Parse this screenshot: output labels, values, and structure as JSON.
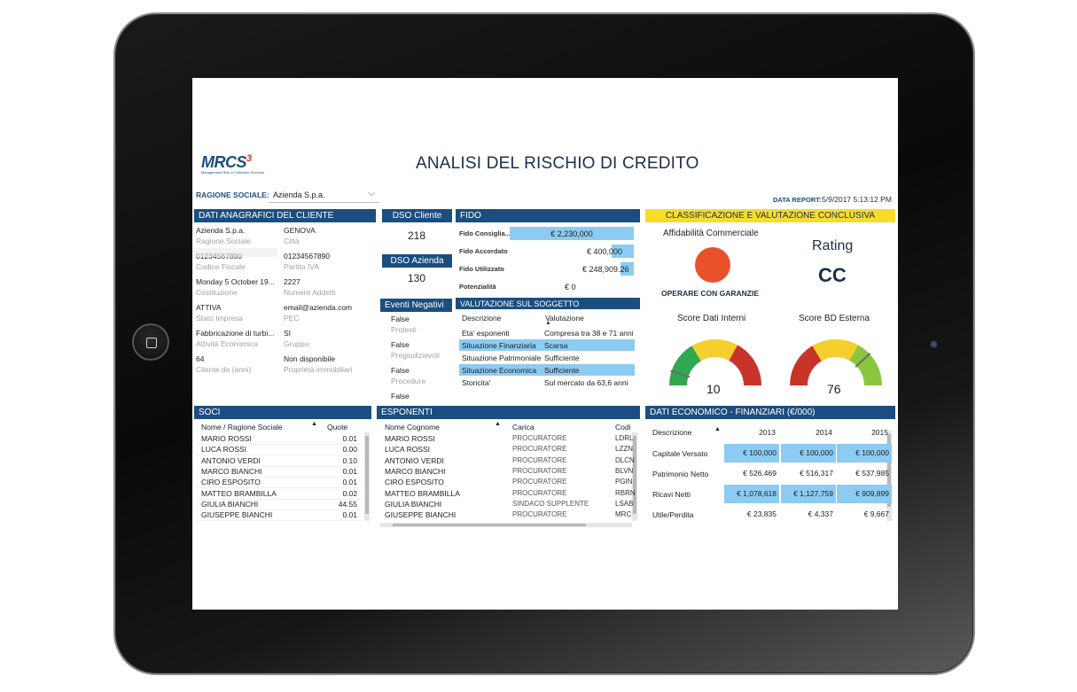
{
  "header": {
    "logo": "MRCS",
    "logo_sup": "3",
    "logo_sub": "Management Risk & Collection Services",
    "title": "ANALISI DEL RISCHIO DI CREDITO",
    "ragione_label": "RAGIONE SOCIALE:",
    "ragione_value": "Azienda S.p.a.",
    "data_report_label": "DATA REPORT:",
    "data_report_value": "5/9/2017 5:13:12 PM"
  },
  "anagrafica": {
    "title": "DATI ANAGRAFICI DEL CLIENTE",
    "left": [
      {
        "value": "Azienda S.p.a.",
        "label": "Ragione Sociale"
      },
      {
        "value": "01234567890",
        "label": "Codice Fiscale"
      },
      {
        "value": "Monday 5 October 19...",
        "label": "Costituzione"
      },
      {
        "value": "ATTIVA",
        "label": "Stato Impresa"
      },
      {
        "value": "Fabbricazione di turbi...",
        "label": "Attività Economica"
      },
      {
        "value": "64",
        "label": "Cliente da (anni)"
      }
    ],
    "right": [
      {
        "value": "GENOVA",
        "label": "Città"
      },
      {
        "value": "01234567890",
        "label": "Partita IVA"
      },
      {
        "value": "2227",
        "label": "Numero Addetti"
      },
      {
        "value": "email@azienda.com",
        "label": "PEC"
      },
      {
        "value": "SI",
        "label": "Gruppo"
      },
      {
        "value": "Non disponibile",
        "label": "Proprietà immobiliari"
      }
    ]
  },
  "dso": {
    "cliente_title": "DSO Cliente",
    "cliente_value": "218",
    "azienda_title": "DSO Azienda",
    "azienda_value": "130"
  },
  "eventi": {
    "title": "Eventi Negativi",
    "items": [
      {
        "value": "False",
        "label": "Protesti"
      },
      {
        "value": "False",
        "label": "Pregiudizievoli"
      },
      {
        "value": "False",
        "label": "Procedure"
      },
      {
        "value": "False",
        "label": ""
      }
    ]
  },
  "fido": {
    "title": "FIDO",
    "rows": [
      {
        "label": "Fido Consiglia...",
        "value": "€ 2,230,000",
        "fraction": 1.0
      },
      {
        "label": "Fido Accordato",
        "value": "€ 400,000",
        "fraction": 0.18
      },
      {
        "label": "Fido Utilizzato",
        "value": "€ 248,909.26",
        "fraction": 0.11
      },
      {
        "label": "Potenzialità",
        "value": "€ 0",
        "fraction": 0.0
      }
    ]
  },
  "valutazione": {
    "title": "VALUTAZIONE SUL SOGGETTO",
    "col1": "Descrizione",
    "col2": "Valutazione",
    "rows": [
      {
        "d": "Eta' esponenti",
        "v": "Compresa tra 38 e 71 anni",
        "hl": false
      },
      {
        "d": "Situazione Finanziaria",
        "v": "Scarsa",
        "hl": true
      },
      {
        "d": "Situazione Patrimoniale",
        "v": "Sufficiente",
        "hl": false
      },
      {
        "d": "Situazione Economica",
        "v": "Sufficiente",
        "hl": true
      },
      {
        "d": "Storicita'",
        "v": "Sul mercato da 63,6 anni",
        "hl": false
      }
    ]
  },
  "classificazione": {
    "title": "CLASSIFICAZIONE E VALUTAZIONE CONCLUSIVA",
    "affidabilita_label": "Affidabilità Commerciale",
    "affidabilita_text": "OPERARE CON GARANZIE",
    "affidabilita_color": "#e8512a",
    "rating_label": "Rating",
    "rating_value": "CC",
    "score_interni_label": "Score Dati Interni",
    "score_interni_value": "10",
    "score_interni": 10,
    "score_esterna_label": "Score BD Esterna",
    "score_esterna_value": "76",
    "score_esterna": 76
  },
  "soci": {
    "title": "SOCI",
    "col1": "Nome / Ragione Sociale",
    "col2": "Quote",
    "rows": [
      {
        "n": "MARIO ROSSI",
        "q": "0.01"
      },
      {
        "n": "LUCA ROSSI",
        "q": "0.00"
      },
      {
        "n": "ANTONIO VERDI",
        "q": "0.10"
      },
      {
        "n": "MARCO BIANCHI",
        "q": "0.01"
      },
      {
        "n": "CIRO ESPOSITO",
        "q": "0.01"
      },
      {
        "n": "MATTEO BRAMBILLA",
        "q": "0.02"
      },
      {
        "n": "GIULIA BIANCHI",
        "q": "44.55"
      },
      {
        "n": "GIUSEPPE BIANCHI",
        "q": "0.01"
      }
    ]
  },
  "esponenti": {
    "title": "ESPONENTI",
    "col1": "Nome Cognome",
    "col2": "Carica",
    "col3": "Codi",
    "rows": [
      {
        "n": "MARIO ROSSI",
        "c": "PROCURATORE",
        "k": "LDRL"
      },
      {
        "n": "LUCA ROSSI",
        "c": "PROCURATORE",
        "k": "LZZN"
      },
      {
        "n": "ANTONIO VERDI",
        "c": "PROCURATORE",
        "k": "DLCN"
      },
      {
        "n": "MARCO BIANCHI",
        "c": "PROCURATORE",
        "k": "BLVN"
      },
      {
        "n": "CIRO ESPOSITO",
        "c": "PROCURATORE",
        "k": "PGIN"
      },
      {
        "n": "MATTEO BRAMBILLA",
        "c": "PROCURATORE",
        "k": "RBRN"
      },
      {
        "n": "GIULIA BIANCHI",
        "c": "SINDACO SUPPLENTE",
        "k": "LSAB"
      },
      {
        "n": "GIUSEPPE BIANCHI",
        "c": "PROCURATORE",
        "k": "MRC"
      }
    ]
  },
  "economici": {
    "title": "DATI ECONOMICO - FINANZIARI (€/000)",
    "col_desc": "Descrizione",
    "years": [
      "2013",
      "2014",
      "2015"
    ],
    "rows": [
      {
        "d": "Capitale Versato",
        "v": [
          "€ 100,000",
          "€ 100,000",
          "€ 100,000"
        ],
        "hl": true
      },
      {
        "d": "Patrimonio Netto",
        "v": [
          "€ 526,469",
          "€ 516,317",
          "€ 537,985"
        ],
        "hl": false
      },
      {
        "d": "Ricavi Netti",
        "v": [
          "€ 1,078,618",
          "€ 1,127,759",
          "€ 909,899"
        ],
        "hl": true
      },
      {
        "d": "Utile/Perdita",
        "v": [
          "€ 23,835",
          "€ 4,337",
          "€ 9,667"
        ],
        "hl": false
      }
    ]
  }
}
